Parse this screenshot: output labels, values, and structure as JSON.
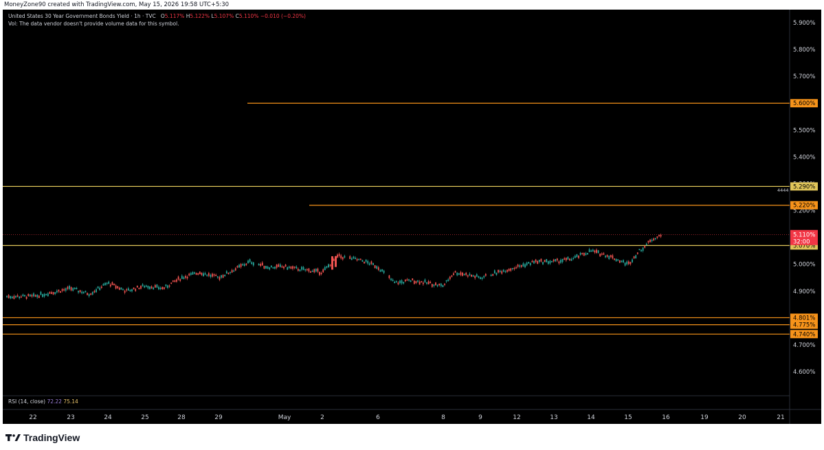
{
  "header": {
    "credit": "MoneyZone90 created with TradingView.com, May 15, 2026 19:58 UTC+5:30"
  },
  "legend": {
    "symbol": "United States 30 Year Government Bonds Yield · 1h · TVC",
    "o_label": "O",
    "o_value": "5.117%",
    "h_label": "H",
    "h_value": "5.122%",
    "l_label": "L",
    "l_value": "5.107%",
    "c_label": "C",
    "c_value": "5.110%",
    "change": "−0.010 (−0.20%)",
    "vol_note": "Vol: The data vendor doesn't provide volume data for this symbol."
  },
  "rsi": {
    "label": "RSI (14, close)",
    "value1": "72.22",
    "value2": "75.14"
  },
  "note": "4444",
  "footer": {
    "brand": "TradingView"
  },
  "colors": {
    "background": "#000000",
    "up": "#26a69a",
    "down": "#ef5350",
    "orange_level": "#f7931a",
    "yellow_level": "#e0c55a",
    "current_price": "#f23645"
  },
  "chart_data": {
    "type": "candlestick",
    "title": "United States 30 Year Government Bonds Yield · 1h · TVC",
    "ylabel": "",
    "ylim": [
      4.54,
      5.94
    ],
    "y_ticks": [
      "5.900%",
      "5.800%",
      "5.700%",
      "5.600%",
      "5.500%",
      "5.400%",
      "5.300%",
      "5.200%",
      "5.100%",
      "5.000%",
      "4.900%",
      "4.800%",
      "4.700%",
      "4.600%"
    ],
    "x_ticks": [
      "22",
      "23",
      "24",
      "25",
      "28",
      "29",
      "May",
      "2",
      "6",
      "8",
      "9",
      "12",
      "13",
      "14",
      "15",
      "16",
      "19",
      "20",
      "21"
    ],
    "horizontal_levels": [
      {
        "value": 5.6,
        "label": "5.600%",
        "color": "orange",
        "from_tick": "29"
      },
      {
        "value": 5.29,
        "label": "5.290%",
        "color": "yellow",
        "from_tick": "22"
      },
      {
        "value": 5.22,
        "label": "5.220%",
        "color": "orange",
        "from_tick": "May"
      },
      {
        "value": 5.07,
        "label": "5.070%",
        "color": "yellow",
        "from_tick": "22"
      },
      {
        "value": 4.801,
        "label": "4.801%",
        "color": "orange",
        "from_tick": "22"
      },
      {
        "value": 4.775,
        "label": "4.775%",
        "color": "orange",
        "from_tick": "22"
      },
      {
        "value": 4.74,
        "label": "4.740%",
        "color": "orange",
        "from_tick": "22"
      }
    ],
    "current_price": {
      "value": 5.11,
      "label": "5.110%",
      "countdown": "32:00"
    },
    "price_path": [
      {
        "x": "22",
        "y": 4.88
      },
      {
        "x": "23",
        "y": 4.91
      },
      {
        "x": "23.5",
        "y": 4.89
      },
      {
        "x": "24",
        "y": 4.93
      },
      {
        "x": "24.5",
        "y": 4.9
      },
      {
        "x": "25",
        "y": 4.92
      },
      {
        "x": "25.5",
        "y": 4.91
      },
      {
        "x": "28",
        "y": 4.95
      },
      {
        "x": "28.5",
        "y": 4.97
      },
      {
        "x": "29",
        "y": 4.95
      },
      {
        "x": "29.5",
        "y": 4.98
      },
      {
        "x": "30",
        "y": 5.01
      },
      {
        "x": "30.5",
        "y": 4.99
      },
      {
        "x": "May",
        "y": 4.99
      },
      {
        "x": "1.5",
        "y": 4.98
      },
      {
        "x": "2",
        "y": 4.97
      },
      {
        "x": "2.5",
        "y": 5.03
      },
      {
        "x": "5",
        "y": 5.02
      },
      {
        "x": "5.5",
        "y": 5.01
      },
      {
        "x": "6",
        "y": 4.99
      },
      {
        "x": "6.5",
        "y": 4.93
      },
      {
        "x": "7",
        "y": 4.94
      },
      {
        "x": "8",
        "y": 4.92
      },
      {
        "x": "8.3",
        "y": 4.97
      },
      {
        "x": "8.7",
        "y": 4.96
      },
      {
        "x": "9",
        "y": 4.95
      },
      {
        "x": "9.5",
        "y": 4.96
      },
      {
        "x": "11",
        "y": 4.97
      },
      {
        "x": "12",
        "y": 4.99
      },
      {
        "x": "12.5",
        "y": 5.01
      },
      {
        "x": "13",
        "y": 5.01
      },
      {
        "x": "13.5",
        "y": 5.02
      },
      {
        "x": "14",
        "y": 5.05
      },
      {
        "x": "14.5",
        "y": 5.03
      },
      {
        "x": "15",
        "y": 5.0
      },
      {
        "x": "15.3",
        "y": 5.05
      },
      {
        "x": "15.7",
        "y": 5.1
      },
      {
        "x": "16",
        "y": 5.11
      }
    ]
  }
}
